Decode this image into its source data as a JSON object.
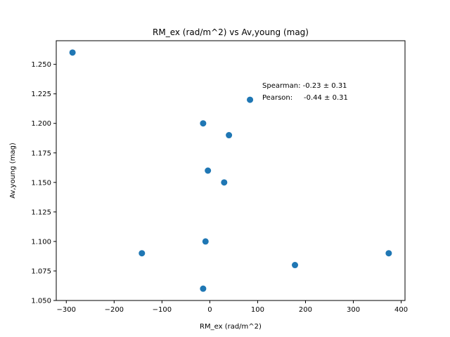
{
  "chart_data": {
    "type": "scatter",
    "title": "RM_ex (rad/m^2) vs Av,young (mag)",
    "xlabel": "RM_ex (rad/m^2)",
    "ylabel": "Av,young (mag)",
    "xlim": [
      -321,
      408
    ],
    "ylim": [
      1.05,
      1.27
    ],
    "xticks": [
      -300,
      -200,
      -100,
      0,
      100,
      200,
      300,
      400
    ],
    "xtick_labels": [
      "−300",
      "−200",
      "−100",
      "0",
      "100",
      "200",
      "300",
      "400"
    ],
    "yticks": [
      1.05,
      1.075,
      1.1,
      1.125,
      1.15,
      1.175,
      1.2,
      1.225,
      1.25
    ],
    "ytick_labels": [
      "1.050",
      "1.075",
      "1.100",
      "1.125",
      "1.150",
      "1.175",
      "1.200",
      "1.225",
      "1.250"
    ],
    "points": [
      {
        "x": -287,
        "y": 1.26
      },
      {
        "x": -142,
        "y": 1.09
      },
      {
        "x": -14,
        "y": 1.2
      },
      {
        "x": -14,
        "y": 1.06
      },
      {
        "x": -9,
        "y": 1.1
      },
      {
        "x": -4,
        "y": 1.16
      },
      {
        "x": 30,
        "y": 1.15
      },
      {
        "x": 40,
        "y": 1.19
      },
      {
        "x": 84,
        "y": 1.22
      },
      {
        "x": 178,
        "y": 1.08
      },
      {
        "x": 374,
        "y": 1.09
      }
    ],
    "annotations": [
      "Spearman: -0.23 ± 0.31",
      "Pearson:     -0.44 ± 0.31"
    ],
    "grid": false,
    "marker_color": "#1f77b4"
  }
}
